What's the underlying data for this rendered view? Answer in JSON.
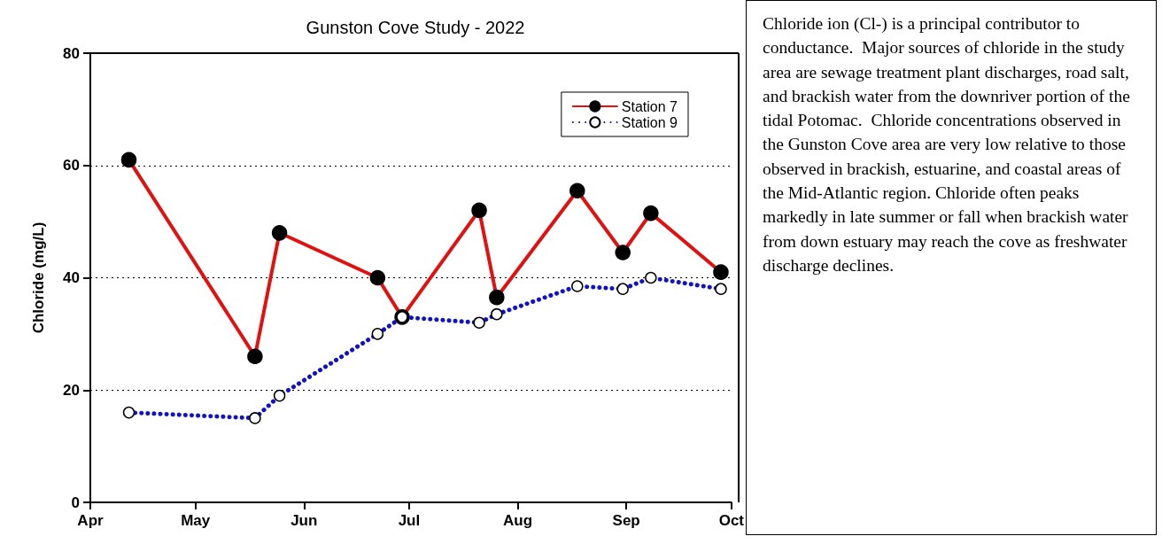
{
  "chart_data": {
    "type": "line",
    "title": "Gunston Cove Study - 2022",
    "ylabel": "Chloride (mg/L)",
    "annotations": [
      "Chloride ion (Cl-) is a principal contributor to conductance.  Major sources of chloride in the study area are sewage treatment plant discharges, road salt, and brackish water from the downriver portion of the tidal Potomac.  Chloride concentrations observed in the Gunston Cove area are very low relative to those observed in brackish, estuarine, and coastal areas of the Mid-Atlantic region. Chloride often peaks markedly in late summer or fall when brackish water from down estuary may reach the cove as freshwater discharge declines."
    ],
    "x": [
      "2022-04-12",
      "2022-05-18",
      "2022-05-25",
      "2022-06-22",
      "2022-06-29",
      "2022-07-21",
      "2022-07-26",
      "2022-08-18",
      "2022-08-31",
      "2022-09-08",
      "2022-09-28"
    ],
    "series": [
      {
        "name": "Station 7",
        "color": "#e31010",
        "line_style": "solid",
        "values": [
          61,
          26,
          48,
          40,
          33,
          52,
          36.5,
          55.5,
          44.5,
          51.5,
          41
        ]
      },
      {
        "name": "Station 9",
        "color": "#1010d0",
        "line_style": "dotted",
        "values": [
          16,
          15,
          19,
          30,
          33,
          32,
          33.5,
          38.5,
          38,
          40,
          38
        ]
      }
    ],
    "xlim": [
      "2022-04-01",
      "2022-10-01"
    ],
    "xticks": [
      {
        "value": "2022-04-01",
        "label": "Apr"
      },
      {
        "value": "2022-05-01",
        "label": "May"
      },
      {
        "value": "2022-06-01",
        "label": "Jun"
      },
      {
        "value": "2022-07-01",
        "label": "Jul"
      },
      {
        "value": "2022-08-01",
        "label": "Aug"
      },
      {
        "value": "2022-09-01",
        "label": "Sep"
      },
      {
        "value": "2022-10-01",
        "label": "Oct"
      }
    ],
    "ylim": [
      0,
      80
    ],
    "yticks": [
      0,
      20,
      40,
      60,
      80
    ],
    "grid": "y",
    "legend": "top right",
    "marker": "circle"
  }
}
